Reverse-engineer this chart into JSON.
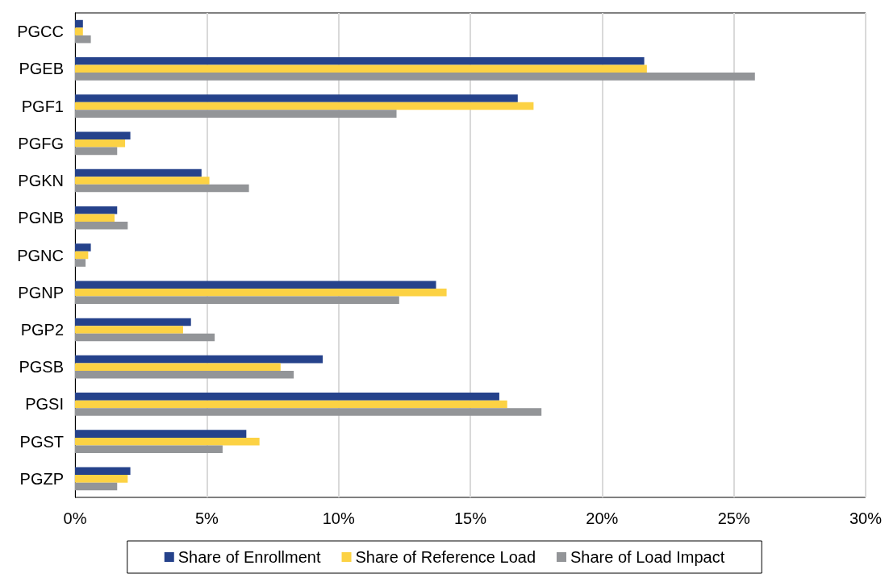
{
  "chart_data": {
    "type": "bar",
    "orientation": "horizontal",
    "categories": [
      "PGCC",
      "PGEB",
      "PGF1",
      "PGFG",
      "PGKN",
      "PGNB",
      "PGNC",
      "PGNP",
      "PGP2",
      "PGSB",
      "PGSI",
      "PGST",
      "PGZP"
    ],
    "series": [
      {
        "name": "Share of Enrollment",
        "color": "#25428b",
        "values": [
          0.3,
          21.6,
          16.8,
          2.1,
          4.8,
          1.6,
          0.6,
          13.7,
          4.4,
          9.4,
          16.1,
          6.5,
          2.1
        ]
      },
      {
        "name": "Share of Reference Load",
        "color": "#fcd244",
        "values": [
          0.3,
          21.7,
          17.4,
          1.9,
          5.1,
          1.5,
          0.5,
          14.1,
          4.1,
          7.8,
          16.4,
          7.0,
          2.0
        ]
      },
      {
        "name": "Share of Load Impact",
        "color": "#939598",
        "values": [
          0.6,
          25.8,
          12.2,
          1.6,
          6.6,
          2.0,
          0.4,
          12.3,
          5.3,
          8.3,
          17.7,
          5.6,
          1.6
        ]
      }
    ],
    "xlim": [
      0,
      30
    ],
    "xticks": [
      {
        "value": 0,
        "label": "0%"
      },
      {
        "value": 5,
        "label": "5%"
      },
      {
        "value": 10,
        "label": "10%"
      },
      {
        "value": 15,
        "label": "15%"
      },
      {
        "value": 20,
        "label": "20%"
      },
      {
        "value": 25,
        "label": "25%"
      },
      {
        "value": 30,
        "label": "30%"
      }
    ],
    "grid": "x",
    "legend": "bottom"
  }
}
